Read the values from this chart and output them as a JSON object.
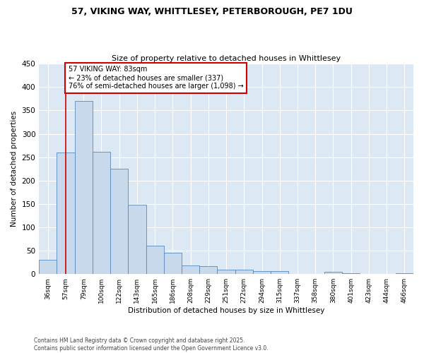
{
  "title_line1": "57, VIKING WAY, WHITTLESEY, PETERBOROUGH, PE7 1DU",
  "title_line2": "Size of property relative to detached houses in Whittlesey",
  "xlabel": "Distribution of detached houses by size in Whittlesey",
  "ylabel": "Number of detached properties",
  "categories": [
    "36sqm",
    "57sqm",
    "79sqm",
    "100sqm",
    "122sqm",
    "143sqm",
    "165sqm",
    "186sqm",
    "208sqm",
    "229sqm",
    "251sqm",
    "272sqm",
    "294sqm",
    "315sqm",
    "337sqm",
    "358sqm",
    "380sqm",
    "401sqm",
    "423sqm",
    "444sqm",
    "466sqm"
  ],
  "values": [
    30,
    260,
    370,
    262,
    226,
    148,
    60,
    45,
    18,
    17,
    10,
    10,
    6,
    6,
    0,
    0,
    5,
    2,
    0,
    0,
    2
  ],
  "bar_color": "#c9d9ec",
  "bar_edge_color": "#5588bb",
  "vline_x": 1,
  "vline_color": "#cc0000",
  "annotation_title": "57 VIKING WAY: 83sqm",
  "annotation_line1": "← 23% of detached houses are smaller (337)",
  "annotation_line2": "76% of semi-detached houses are larger (1,098) →",
  "annotation_box_color": "#cc0000",
  "background_color": "#dde8f5",
  "ylim": [
    0,
    450
  ],
  "yticks": [
    0,
    50,
    100,
    150,
    200,
    250,
    300,
    350,
    400,
    450
  ],
  "footer_line1": "Contains HM Land Registry data © Crown copyright and database right 2025.",
  "footer_line2": "Contains public sector information licensed under the Open Government Licence v3.0."
}
